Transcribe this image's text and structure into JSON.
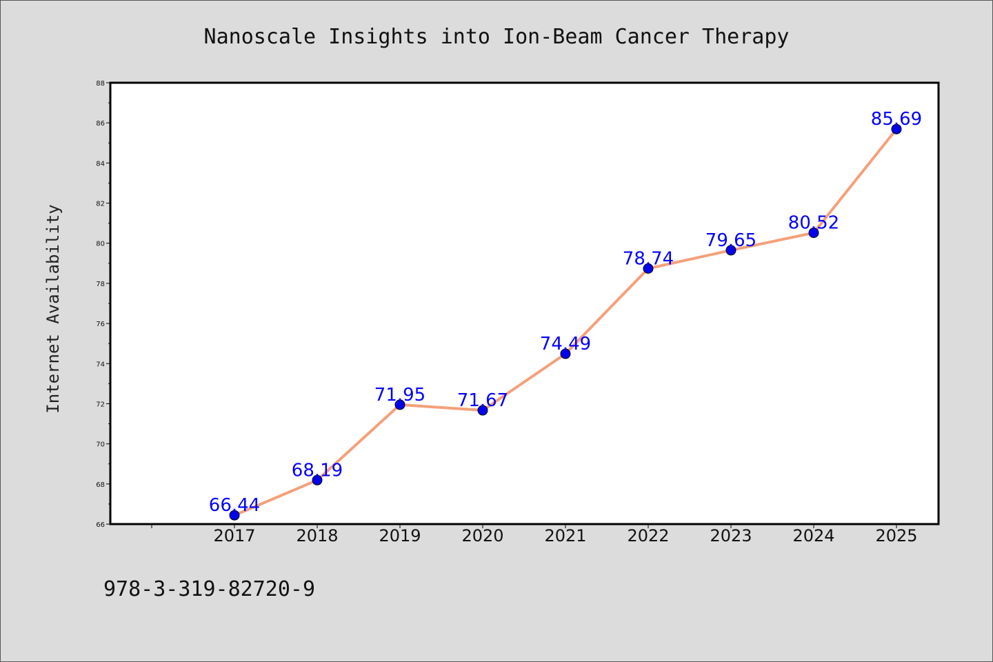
{
  "chart_data": {
    "type": "line",
    "title": "Nanoscale Insights into Ion-Beam Cancer Therapy",
    "ylabel": "Internet Availability",
    "xlabel": "",
    "categories": [
      "2017",
      "2018",
      "2019",
      "2020",
      "2021",
      "2022",
      "2023",
      "2024",
      "2025"
    ],
    "values": [
      66.44,
      68.19,
      71.95,
      71.67,
      74.49,
      78.74,
      79.65,
      80.52,
      85.69
    ],
    "data_labels": [
      "66.44",
      "68.19",
      "71.95",
      "71.67",
      "74.49",
      "78.74",
      "79.65",
      "80.52",
      "85.69"
    ],
    "ylim": [
      66,
      88
    ],
    "yticks": [
      "66",
      "68",
      "70",
      "72",
      "74",
      "76",
      "78",
      "80",
      "82",
      "84",
      "86",
      "88"
    ],
    "line_color": "#f4a07a",
    "marker_color": "#0000ee",
    "label_color": "#0000ff",
    "grid": false,
    "legend": "none"
  },
  "footer": {
    "isbn": "978-3-319-82720-9"
  },
  "colors": {
    "background": "#dcdcdc",
    "plot_background": "#ffffff"
  }
}
